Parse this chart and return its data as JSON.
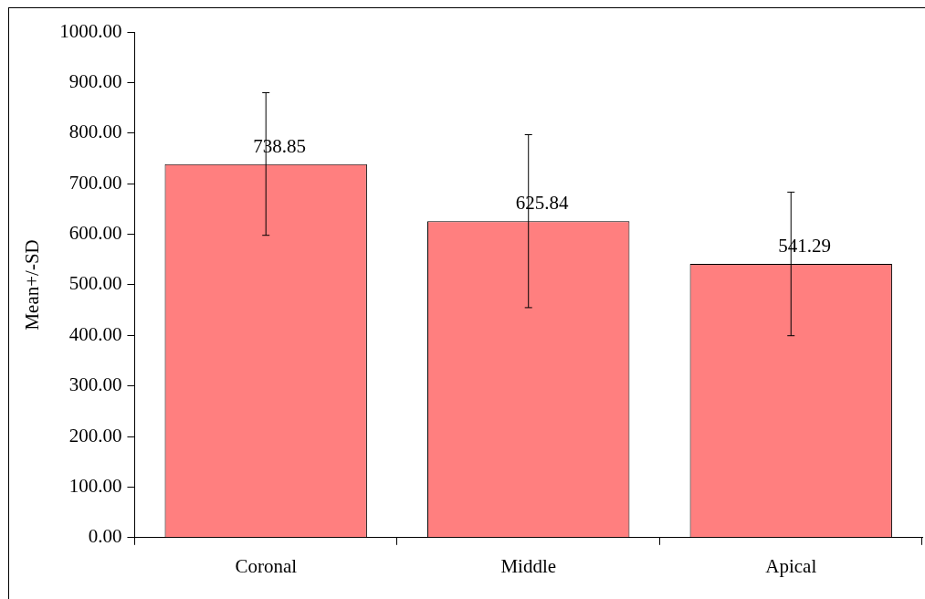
{
  "chart_data": {
    "type": "bar",
    "ylabel": "Mean+/-SD",
    "categories": [
      "Coronal",
      "Middle",
      "Apical"
    ],
    "values": [
      738.85,
      625.84,
      541.29
    ],
    "errors": [
      141,
      171,
      142
    ],
    "color": "#ff7f7f",
    "data_labels": true,
    "grid": false,
    "legend": false,
    "ylim": [
      0,
      1000
    ],
    "yticks": [
      {
        "value": 0,
        "label": "0.00"
      },
      {
        "value": 100,
        "label": "100.00"
      },
      {
        "value": 200,
        "label": "200.00"
      },
      {
        "value": 300,
        "label": "300.00"
      },
      {
        "value": 400,
        "label": "400.00"
      },
      {
        "value": 500,
        "label": "500.00"
      },
      {
        "value": 600,
        "label": "600.00"
      },
      {
        "value": 700,
        "label": "700.00"
      },
      {
        "value": 800,
        "label": "800.00"
      },
      {
        "value": 900,
        "label": "900.00"
      },
      {
        "value": 1000,
        "label": "1000.00"
      }
    ]
  }
}
